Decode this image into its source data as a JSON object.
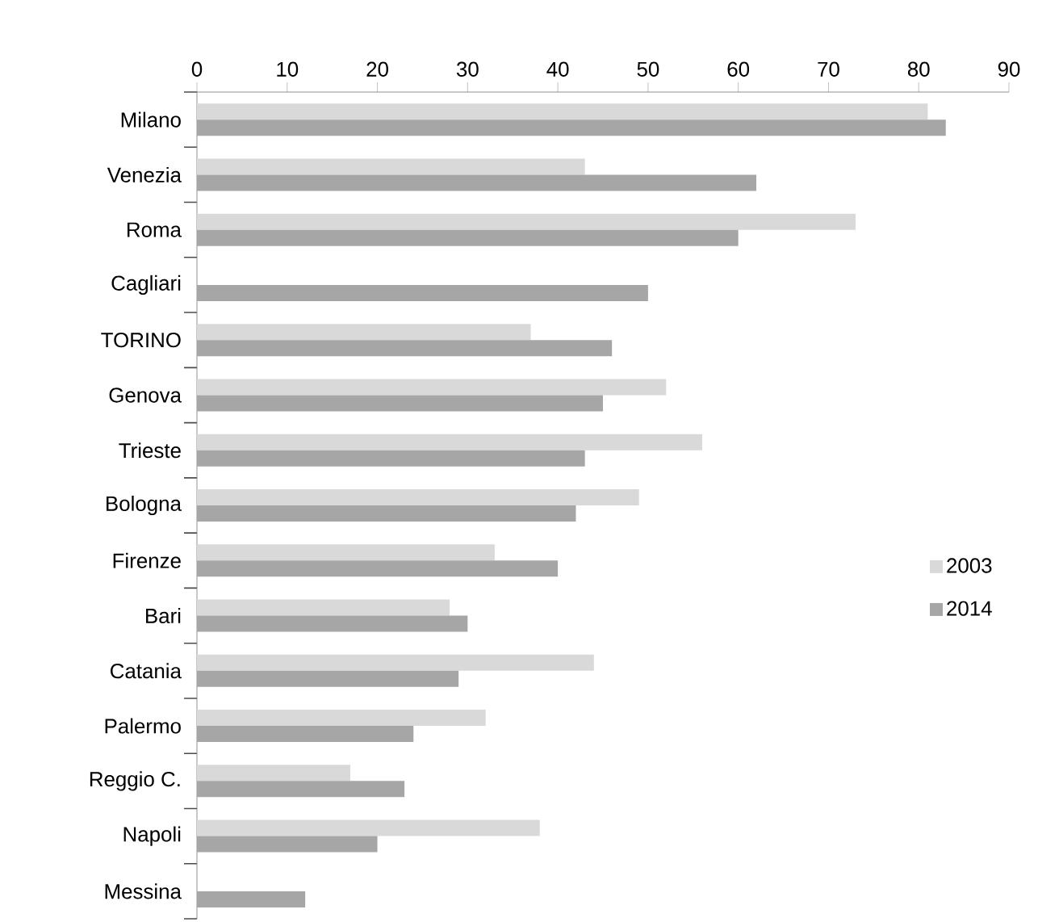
{
  "chart_data": {
    "type": "bar",
    "orientation": "horizontal",
    "categories": [
      "Milano",
      "Venezia",
      "Roma",
      "Cagliari",
      "TORINO",
      "Genova",
      "Trieste",
      "Bologna",
      "Firenze",
      "Bari",
      "Catania",
      "Palermo",
      "Reggio C.",
      "Napoli",
      "Messina"
    ],
    "series": [
      {
        "name": "2003",
        "color": "#d9d9d9",
        "values": [
          81,
          43,
          73,
          null,
          37,
          52,
          56,
          49,
          33,
          28,
          44,
          32,
          17,
          38,
          null
        ]
      },
      {
        "name": "2014",
        "color": "#a6a6a6",
        "values": [
          83,
          62,
          60,
          50,
          46,
          45,
          43,
          42,
          40,
          30,
          29,
          24,
          23,
          20,
          12
        ]
      }
    ],
    "xlim": [
      0,
      90
    ],
    "xticks": [
      0,
      10,
      20,
      30,
      40,
      50,
      60,
      70,
      80,
      90
    ],
    "grid": false,
    "legend": "right"
  }
}
